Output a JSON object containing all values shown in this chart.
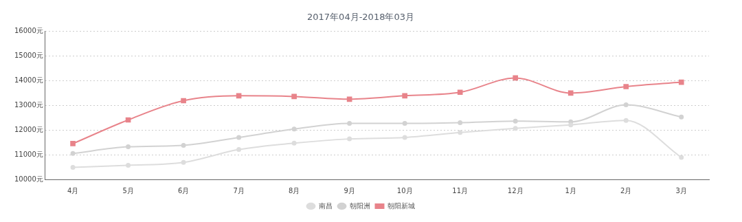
{
  "chart_data": {
    "type": "line",
    "title": "2017年04月-2018年03月",
    "categories": [
      "4月",
      "5月",
      "6月",
      "7月",
      "8月",
      "9月",
      "10月",
      "11月",
      "12月",
      "1月",
      "2月",
      "3月"
    ],
    "series": [
      {
        "name": "南昌",
        "color": "#dddddd",
        "marker": "circle",
        "values": [
          10490,
          10570,
          10690,
          11210,
          11470,
          11640,
          11700,
          11900,
          12070,
          12210,
          12390,
          10890
        ]
      },
      {
        "name": "朝阳洲",
        "color": "#d2d2d2",
        "marker": "circle",
        "values": [
          11050,
          11320,
          11380,
          11700,
          12040,
          12270,
          12270,
          12300,
          12360,
          12330,
          13020,
          12530
        ]
      },
      {
        "name": "朝阳新城",
        "color": "#e8838a",
        "marker": "square",
        "values": [
          11450,
          12410,
          13190,
          13390,
          13360,
          13250,
          13390,
          13530,
          14110,
          13500,
          13760,
          13940
        ]
      }
    ],
    "ylim": [
      10000,
      16000
    ],
    "yticks": [
      {
        "value": 10000,
        "label": "10000元"
      },
      {
        "value": 11000,
        "label": "11000元"
      },
      {
        "value": 12000,
        "label": "12000元"
      },
      {
        "value": 13000,
        "label": "13000元"
      },
      {
        "value": 14000,
        "label": "14000元"
      },
      {
        "value": 15000,
        "label": "15000元"
      },
      {
        "value": 16000,
        "label": "16000元"
      }
    ],
    "grid": "y",
    "legend": "bottom",
    "line_style": "solid"
  }
}
